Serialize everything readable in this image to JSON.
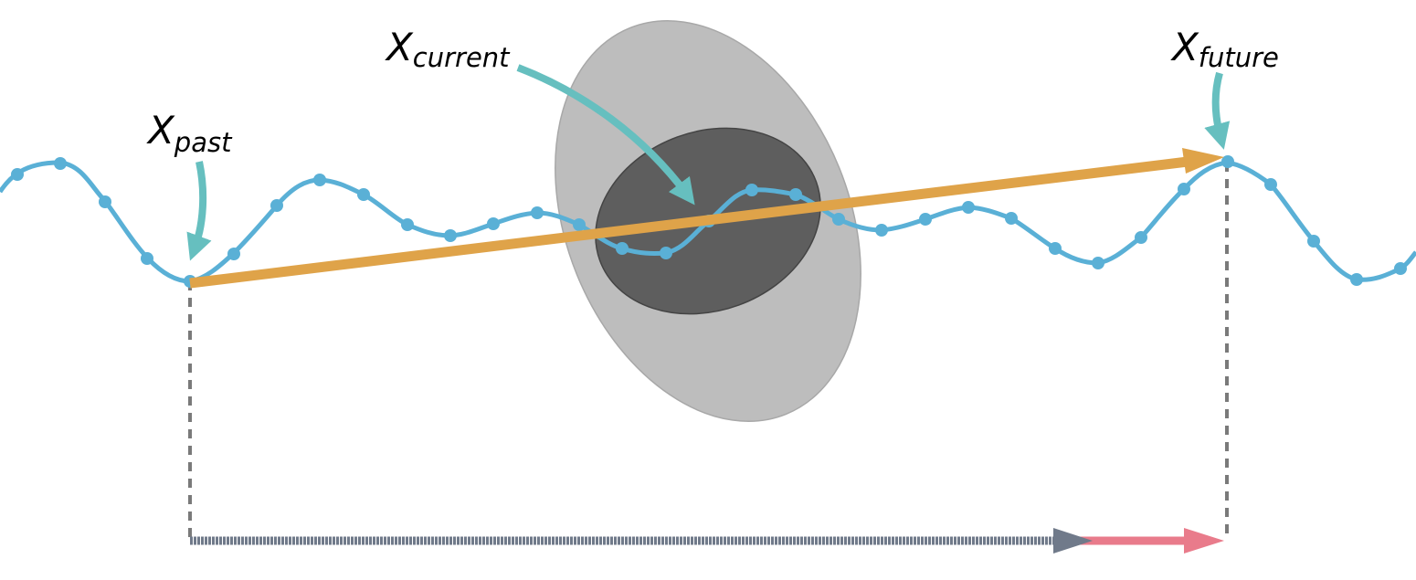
{
  "labels": {
    "past_main": "X",
    "past_sub": "past",
    "current_main": "X",
    "current_sub": "current",
    "future_main": "X",
    "future_sub": "future"
  },
  "colors": {
    "curve": "#5ab0d6",
    "prediction_arrow": "#dfa349",
    "pointer_arrows": "#66bfbf",
    "outer_ellipse": "#bdbdbd",
    "inner_ellipse": "#5e5e5e",
    "guide_lines": "#7a7a7a",
    "time_arrow": "#707a8a",
    "future_arrow": "#e97b8b"
  },
  "icons": {
    "pointer": "curved-arrow-icon",
    "time": "right-arrow-icon"
  }
}
